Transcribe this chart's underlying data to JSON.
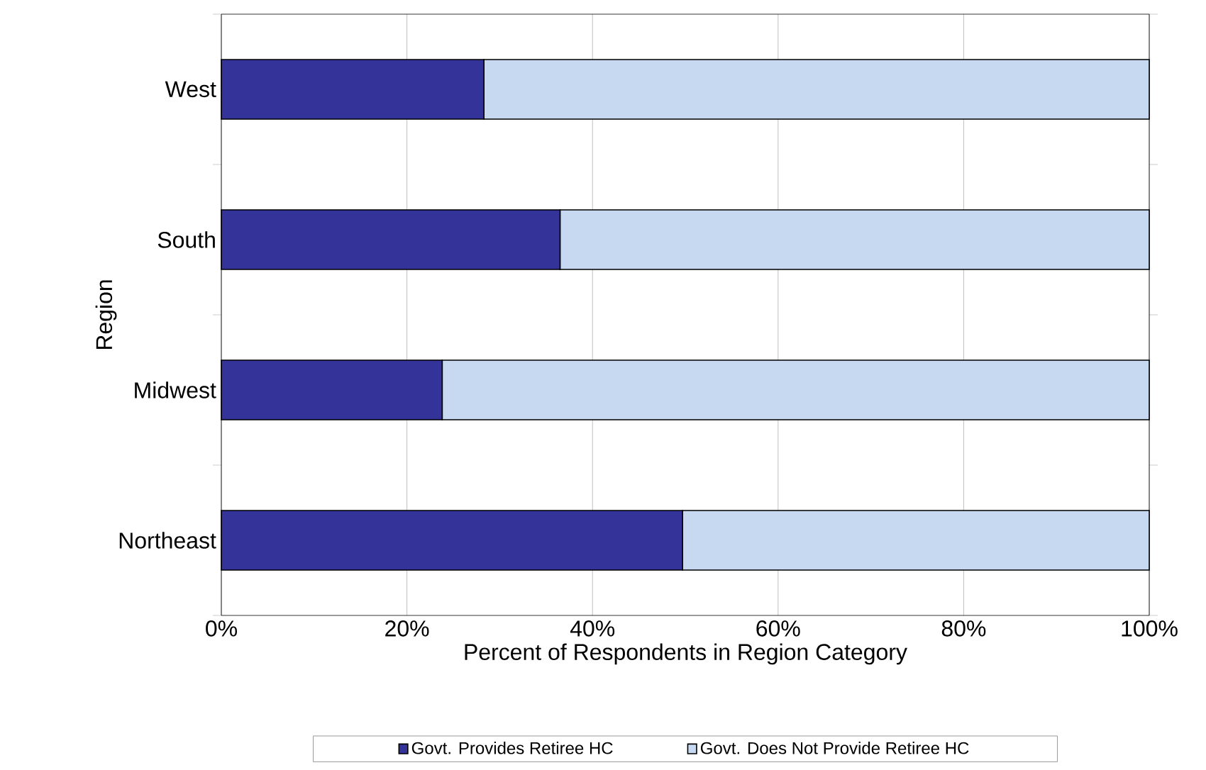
{
  "chart_data": {
    "type": "bar",
    "orientation": "horizontal",
    "stacked": true,
    "categories": [
      "West",
      "South",
      "Midwest",
      "Northeast"
    ],
    "series": [
      {
        "name": "Govt. Provides Retiree HC",
        "color": "#333399",
        "values": [
          28.3,
          36.5,
          23.8,
          49.7
        ]
      },
      {
        "name": "Govt. Does Not Provide Retiree HC",
        "color": "#c6d9f0",
        "values": [
          71.7,
          63.5,
          76.2,
          50.3
        ]
      }
    ],
    "xlabel": "Percent of Respondents in Region Category",
    "ylabel": "Region",
    "xlim": [
      0,
      100
    ],
    "xticks": [
      {
        "value": 0,
        "label": "0%"
      },
      {
        "value": 20,
        "label": "20%"
      },
      {
        "value": 40,
        "label": "40%"
      },
      {
        "value": 60,
        "label": "60%"
      },
      {
        "value": 80,
        "label": "80%"
      },
      {
        "value": 100,
        "label": "100%"
      }
    ],
    "grid": "x",
    "legend": "bottom"
  }
}
